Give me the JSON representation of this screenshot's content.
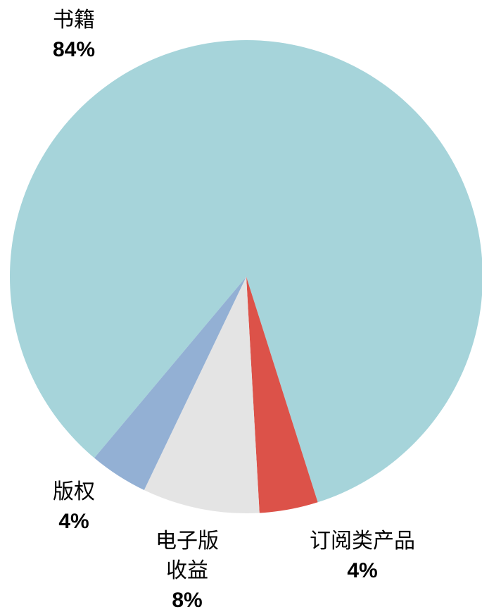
{
  "chart_data": {
    "type": "pie",
    "categories": [
      "书籍",
      "订阅类产品",
      "电子版收益",
      "版权"
    ],
    "values": [
      84,
      4,
      8,
      4
    ],
    "value_labels": [
      "84%",
      "4%",
      "8%",
      "4%"
    ],
    "colors": [
      "#a6d4da",
      "#dc5249",
      "#e4e4e4",
      "#93b0d4"
    ]
  }
}
